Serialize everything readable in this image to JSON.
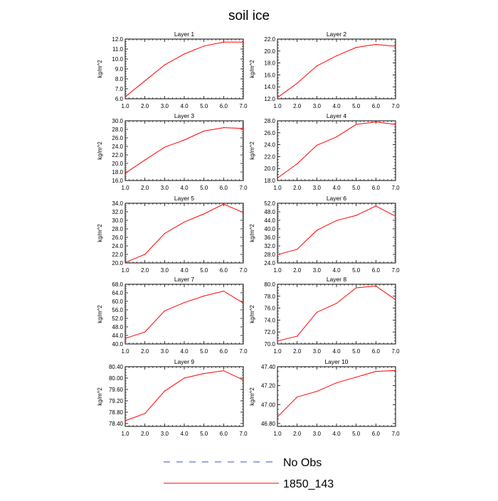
{
  "title": "soil ice",
  "colors": {
    "series": "#ff0000",
    "obs": "#3355cc"
  },
  "legend": [
    {
      "label": "No Obs",
      "style": "dashed",
      "color": "#3355cc"
    },
    {
      "label": "1850_143",
      "style": "solid",
      "color": "#ff0000"
    }
  ],
  "chart_data": [
    {
      "type": "line",
      "title": "Layer 1",
      "ylabel": "kg/m^2",
      "x": [
        1,
        2,
        3,
        4,
        5,
        6,
        7
      ],
      "xlim": [
        1,
        7
      ],
      "xticks": [
        "1.0",
        "2.0",
        "3.0",
        "4.0",
        "5.0",
        "6.0",
        "7.0"
      ],
      "ylim": [
        6.0,
        12.0
      ],
      "yticks": [
        "6.0",
        "7.0",
        "8.0",
        "9.0",
        "10.0",
        "11.0",
        "12.0"
      ],
      "series": [
        {
          "name": "1850_143",
          "values": [
            6.2,
            7.8,
            9.4,
            10.5,
            11.3,
            11.7,
            11.7
          ]
        }
      ]
    },
    {
      "type": "line",
      "title": "Layer 2",
      "ylabel": "kg/m^2",
      "x": [
        1,
        2,
        3,
        4,
        5,
        6,
        7
      ],
      "xlim": [
        1,
        7
      ],
      "xticks": [
        "1.0",
        "2.0",
        "3.0",
        "4.0",
        "5.0",
        "6.0",
        "7.0"
      ],
      "ylim": [
        12.0,
        22.0
      ],
      "yticks": [
        "12.0",
        "14.0",
        "16.0",
        "18.0",
        "20.0",
        "22.0"
      ],
      "series": [
        {
          "name": "1850_143",
          "values": [
            12.2,
            14.6,
            17.5,
            19.2,
            20.6,
            21.1,
            20.8
          ]
        }
      ]
    },
    {
      "type": "line",
      "title": "Layer 3",
      "ylabel": "kg/m^2",
      "x": [
        1,
        2,
        3,
        4,
        5,
        6,
        7
      ],
      "xlim": [
        1,
        7
      ],
      "xticks": [
        "1.0",
        "2.0",
        "3.0",
        "4.0",
        "5.0",
        "6.0",
        "7.0"
      ],
      "ylim": [
        16.0,
        30.0
      ],
      "yticks": [
        "16.0",
        "18.0",
        "20.0",
        "22.0",
        "24.0",
        "26.0",
        "28.0",
        "30.0"
      ],
      "series": [
        {
          "name": "1850_143",
          "values": [
            17.7,
            20.8,
            23.8,
            25.5,
            27.6,
            28.4,
            28.2
          ]
        }
      ]
    },
    {
      "type": "line",
      "title": "Layer 4",
      "ylabel": "kg/m^2",
      "x": [
        1,
        2,
        3,
        4,
        5,
        6,
        7
      ],
      "xlim": [
        1,
        7
      ],
      "xticks": [
        "1.0",
        "2.0",
        "3.0",
        "4.0",
        "5.0",
        "6.0",
        "7.0"
      ],
      "ylim": [
        18.0,
        28.0
      ],
      "yticks": [
        "18.0",
        "20.0",
        "22.0",
        "24.0",
        "26.0",
        "28.0"
      ],
      "series": [
        {
          "name": "1850_143",
          "values": [
            18.4,
            20.8,
            23.9,
            25.3,
            27.4,
            27.8,
            27.4
          ]
        }
      ]
    },
    {
      "type": "line",
      "title": "Layer 5",
      "ylabel": "kg/m^2",
      "x": [
        1,
        2,
        3,
        4,
        5,
        6,
        7
      ],
      "xlim": [
        1,
        7
      ],
      "xticks": [
        "1.0",
        "2.0",
        "3.0",
        "4.0",
        "5.0",
        "6.0",
        "7.0"
      ],
      "ylim": [
        20.0,
        34.0
      ],
      "yticks": [
        "20.0",
        "22.0",
        "24.0",
        "26.0",
        "28.0",
        "30.0",
        "32.0",
        "34.0"
      ],
      "series": [
        {
          "name": "1850_143",
          "values": [
            20.1,
            22.0,
            26.9,
            29.6,
            31.5,
            33.8,
            31.8
          ]
        }
      ]
    },
    {
      "type": "line",
      "title": "Layer 6",
      "ylabel": "kg/m^2",
      "x": [
        1,
        2,
        3,
        4,
        5,
        6,
        7
      ],
      "xlim": [
        1,
        7
      ],
      "xticks": [
        "1.0",
        "2.0",
        "3.0",
        "4.0",
        "5.0",
        "6.0",
        "7.0"
      ],
      "ylim": [
        24.0,
        52.0
      ],
      "yticks": [
        "24.0",
        "28.0",
        "32.0",
        "36.0",
        "40.0",
        "44.0",
        "48.0",
        "52.0"
      ],
      "series": [
        {
          "name": "1850_143",
          "values": [
            27.9,
            30.4,
            39.3,
            43.9,
            46.3,
            50.7,
            45.9
          ]
        }
      ]
    },
    {
      "type": "line",
      "title": "Layer 7",
      "ylabel": "kg/m^2",
      "x": [
        1,
        2,
        3,
        4,
        5,
        6,
        7
      ],
      "xlim": [
        1,
        7
      ],
      "xticks": [
        "1.0",
        "2.0",
        "3.0",
        "4.0",
        "5.0",
        "6.0",
        "7.0"
      ],
      "ylim": [
        40.0,
        68.0
      ],
      "yticks": [
        "40.0",
        "44.0",
        "48.0",
        "52.0",
        "56.0",
        "60.0",
        "64.0",
        "68.0"
      ],
      "series": [
        {
          "name": "1850_143",
          "values": [
            42.6,
            45.6,
            55.5,
            59.4,
            62.5,
            64.8,
            59.2
          ]
        }
      ]
    },
    {
      "type": "line",
      "title": "Layer 8",
      "ylabel": "kg/m^2",
      "x": [
        1,
        2,
        3,
        4,
        5,
        6,
        7
      ],
      "xlim": [
        1,
        7
      ],
      "xticks": [
        "1.0",
        "2.0",
        "3.0",
        "4.0",
        "5.0",
        "6.0",
        "7.0"
      ],
      "ylim": [
        70.0,
        80.0
      ],
      "yticks": [
        "70.0",
        "72.0",
        "74.0",
        "76.0",
        "78.0",
        "80.0"
      ],
      "series": [
        {
          "name": "1850_143",
          "values": [
            70.5,
            71.3,
            75.3,
            76.8,
            79.4,
            79.7,
            77.4
          ]
        }
      ]
    },
    {
      "type": "line",
      "title": "Layer 9",
      "ylabel": "kg/m^2",
      "x": [
        1,
        2,
        3,
        4,
        5,
        6,
        7
      ],
      "xlim": [
        1,
        7
      ],
      "xticks": [
        "1.0",
        "2.0",
        "3.0",
        "4.0",
        "5.0",
        "6.0",
        "7.0"
      ],
      "ylim": [
        78.3,
        80.4
      ],
      "yticks": [
        "78.40",
        "78.80",
        "79.20",
        "79.60",
        "80.00",
        "80.40"
      ],
      "ytick_values": [
        78.4,
        78.8,
        79.2,
        79.6,
        80.0,
        80.4
      ],
      "series": [
        {
          "name": "1850_143",
          "values": [
            78.5,
            78.75,
            79.54,
            80.0,
            80.16,
            80.26,
            79.93
          ]
        }
      ]
    },
    {
      "type": "line",
      "title": "Layer 10",
      "ylabel": "kg/m^2",
      "x": [
        1,
        2,
        3,
        4,
        5,
        6,
        7
      ],
      "xlim": [
        1,
        7
      ],
      "xticks": [
        "1.0",
        "2.0",
        "3.0",
        "4.0",
        "5.0",
        "6.0",
        "7.0"
      ],
      "ylim": [
        46.77,
        47.4
      ],
      "yticks": [
        "46.80",
        "47.00",
        "47.20",
        "47.40"
      ],
      "ytick_values": [
        46.8,
        47.0,
        47.2,
        47.4
      ],
      "series": [
        {
          "name": "1850_143",
          "values": [
            46.87,
            47.08,
            47.14,
            47.23,
            47.29,
            47.35,
            47.36
          ]
        }
      ]
    }
  ]
}
